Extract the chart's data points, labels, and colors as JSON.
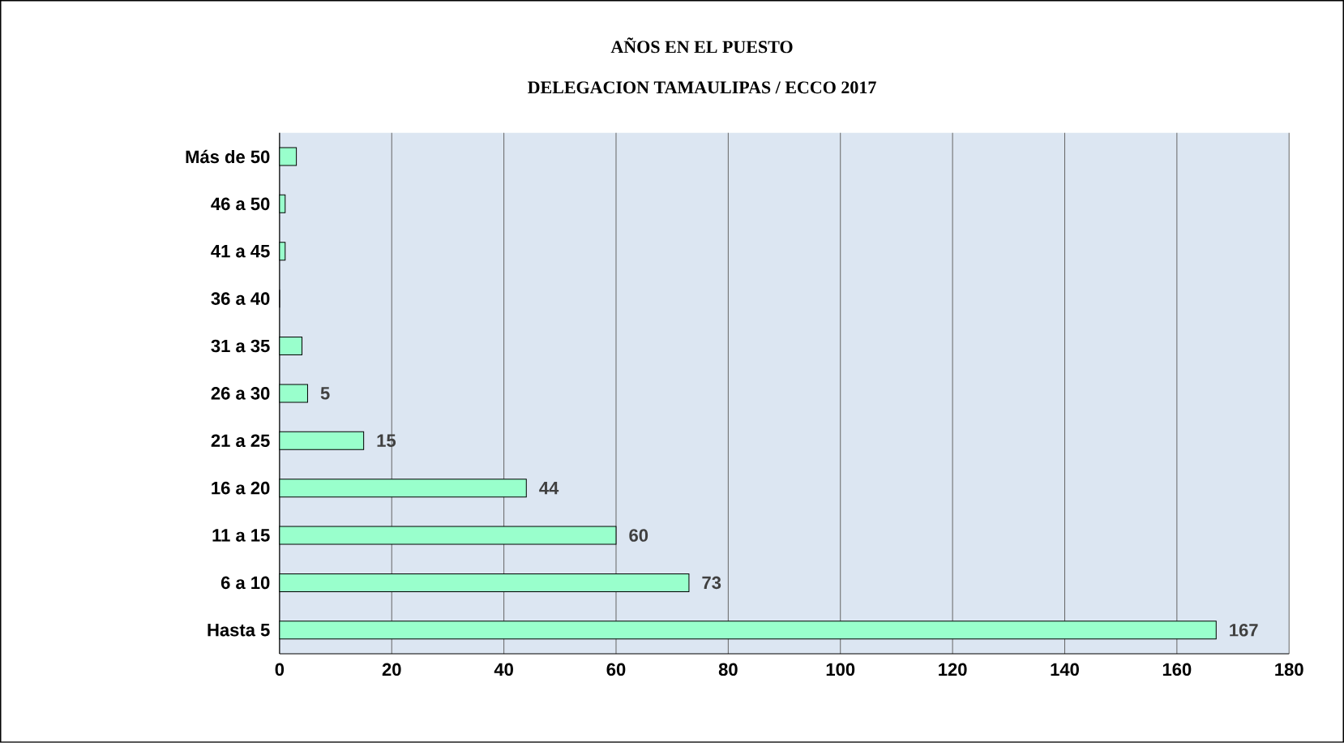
{
  "chart_data": {
    "type": "bar",
    "orientation": "horizontal",
    "title": "AÑOS EN EL PUESTO",
    "subtitle": "DELEGACION TAMAULIPAS  / ECCO 2017",
    "categories": [
      "Más de 50",
      "46 a 50",
      "41 a 45",
      "36 a 40",
      "31 a 35",
      "26 a 30",
      "21 a 25",
      "16 a 20",
      "11 a 15",
      "6 a 10",
      "Hasta 5"
    ],
    "values": [
      3,
      1,
      1,
      0,
      4,
      5,
      15,
      44,
      60,
      73,
      167
    ],
    "value_labels": [
      null,
      null,
      null,
      null,
      null,
      "5",
      "15",
      "44",
      "60",
      "73",
      "167"
    ],
    "color": "#99ffcc",
    "xlim": [
      0,
      180
    ],
    "xticks": [
      0,
      20,
      40,
      60,
      80,
      100,
      120,
      140,
      160,
      180
    ],
    "grid": "x"
  }
}
